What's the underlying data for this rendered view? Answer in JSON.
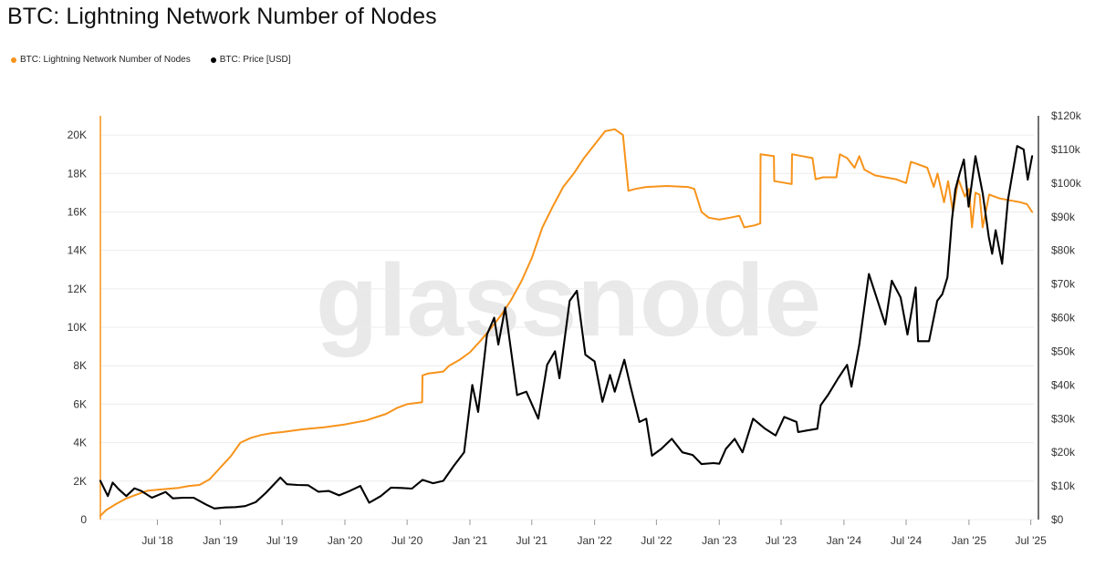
{
  "title": "BTC: Lightning Network Number of Nodes",
  "watermark": "glassnode",
  "legend": [
    {
      "label": "BTC: Lightning Network Number of Nodes",
      "color": "#F7931A"
    },
    {
      "label": "BTC: Price [USD]",
      "color": "#000000"
    }
  ],
  "chart_data": {
    "type": "line",
    "title": "BTC: Lightning Network Number of Nodes",
    "x_ticks": [
      "Jul '18",
      "Jan '19",
      "Jul '19",
      "Jan '20",
      "Jul '20",
      "Jan '21",
      "Jul '21",
      "Jan '22",
      "Jul '22",
      "Jan '23",
      "Jul '23",
      "Jan '24",
      "Jul '24",
      "Jan '25",
      "Jul '25"
    ],
    "x_tick_dates": [
      "2018-07-01",
      "2019-01-01",
      "2019-07-01",
      "2020-01-01",
      "2020-07-01",
      "2021-01-01",
      "2021-07-01",
      "2022-01-01",
      "2022-07-01",
      "2023-01-01",
      "2023-07-01",
      "2024-01-01",
      "2024-07-01",
      "2025-01-01",
      "2025-07-01"
    ],
    "xlim": [
      "2018-01-15",
      "2025-07-10"
    ],
    "y_left": {
      "ylim": [
        0,
        21000
      ],
      "ticks": [
        0,
        2000,
        4000,
        6000,
        8000,
        10000,
        12000,
        14000,
        16000,
        18000,
        20000
      ],
      "tick_labels": [
        "0",
        "2K",
        "4K",
        "6K",
        "8K",
        "10K",
        "12K",
        "14K",
        "16K",
        "18K",
        "20K"
      ]
    },
    "y_right": {
      "ylim": [
        0,
        120000
      ],
      "ticks": [
        0,
        10000,
        20000,
        30000,
        40000,
        50000,
        60000,
        70000,
        80000,
        90000,
        100000,
        110000,
        120000
      ],
      "tick_labels": [
        "$0",
        "$10k",
        "$20k",
        "$30k",
        "$40k",
        "$50k",
        "$60k",
        "$70k",
        "$80k",
        "$90k",
        "$100k",
        "$110k",
        "$120k"
      ]
    },
    "grid": true,
    "legend_position": "top-left",
    "series": [
      {
        "name": "BTC: Lightning Network Number of Nodes",
        "axis": "left",
        "color": "#F7931A",
        "points": [
          [
            "2018-01-15",
            200
          ],
          [
            "2018-02-01",
            500
          ],
          [
            "2018-03-01",
            800
          ],
          [
            "2018-04-01",
            1100
          ],
          [
            "2018-05-01",
            1300
          ],
          [
            "2018-06-01",
            1500
          ],
          [
            "2018-07-01",
            1550
          ],
          [
            "2018-08-01",
            1600
          ],
          [
            "2018-09-01",
            1650
          ],
          [
            "2018-10-01",
            1750
          ],
          [
            "2018-11-01",
            1800
          ],
          [
            "2018-12-01",
            2100
          ],
          [
            "2019-01-01",
            2700
          ],
          [
            "2019-02-01",
            3300
          ],
          [
            "2019-03-01",
            4000
          ],
          [
            "2019-04-01",
            4250
          ],
          [
            "2019-05-01",
            4400
          ],
          [
            "2019-06-01",
            4500
          ],
          [
            "2019-07-01",
            4550
          ],
          [
            "2019-09-01",
            4700
          ],
          [
            "2019-11-01",
            4800
          ],
          [
            "2020-01-01",
            4950
          ],
          [
            "2020-03-01",
            5150
          ],
          [
            "2020-05-01",
            5500
          ],
          [
            "2020-06-01",
            5800
          ],
          [
            "2020-07-01",
            6000
          ],
          [
            "2020-08-14",
            6100
          ],
          [
            "2020-08-15",
            7500
          ],
          [
            "2020-09-01",
            7600
          ],
          [
            "2020-10-15",
            7700
          ],
          [
            "2020-11-01",
            8000
          ],
          [
            "2020-12-01",
            8300
          ],
          [
            "2021-01-01",
            8700
          ],
          [
            "2021-02-01",
            9300
          ],
          [
            "2021-03-01",
            9900
          ],
          [
            "2021-04-01",
            10600
          ],
          [
            "2021-05-01",
            11400
          ],
          [
            "2021-06-01",
            12400
          ],
          [
            "2021-07-01",
            13600
          ],
          [
            "2021-08-01",
            15200
          ],
          [
            "2021-09-01",
            16300
          ],
          [
            "2021-10-01",
            17300
          ],
          [
            "2021-11-01",
            18000
          ],
          [
            "2021-12-01",
            18800
          ],
          [
            "2022-01-01",
            19500
          ],
          [
            "2022-02-01",
            20200
          ],
          [
            "2022-03-01",
            20300
          ],
          [
            "2022-03-25",
            20000
          ],
          [
            "2022-04-10",
            17100
          ],
          [
            "2022-05-01",
            17200
          ],
          [
            "2022-06-01",
            17300
          ],
          [
            "2022-08-01",
            17350
          ],
          [
            "2022-10-01",
            17300
          ],
          [
            "2022-10-20",
            17200
          ],
          [
            "2022-11-10",
            16000
          ],
          [
            "2022-12-01",
            15700
          ],
          [
            "2023-01-01",
            15600
          ],
          [
            "2023-02-01",
            15700
          ],
          [
            "2023-03-01",
            15800
          ],
          [
            "2023-03-15",
            15200
          ],
          [
            "2023-04-15",
            15300
          ],
          [
            "2023-05-01",
            15400
          ],
          [
            "2023-05-02",
            19000
          ],
          [
            "2023-06-10",
            18900
          ],
          [
            "2023-06-11",
            17600
          ],
          [
            "2023-07-15",
            17500
          ],
          [
            "2023-08-01",
            17450
          ],
          [
            "2023-08-02",
            19000
          ],
          [
            "2023-09-01",
            18900
          ],
          [
            "2023-10-01",
            18800
          ],
          [
            "2023-10-10",
            17700
          ],
          [
            "2023-11-01",
            17800
          ],
          [
            "2023-12-10",
            17800
          ],
          [
            "2023-12-20",
            19000
          ],
          [
            "2024-01-10",
            18800
          ],
          [
            "2024-02-01",
            18300
          ],
          [
            "2024-02-15",
            18900
          ],
          [
            "2024-03-01",
            18200
          ],
          [
            "2024-04-01",
            17900
          ],
          [
            "2024-05-01",
            17800
          ],
          [
            "2024-06-01",
            17700
          ],
          [
            "2024-07-01",
            17500
          ],
          [
            "2024-07-15",
            18600
          ],
          [
            "2024-08-01",
            18500
          ],
          [
            "2024-09-01",
            18300
          ],
          [
            "2024-09-20",
            17300
          ],
          [
            "2024-10-01",
            18000
          ],
          [
            "2024-10-20",
            16500
          ],
          [
            "2024-11-01",
            17600
          ],
          [
            "2024-11-15",
            16000
          ],
          [
            "2024-12-01",
            17700
          ],
          [
            "2024-12-20",
            16800
          ],
          [
            "2025-01-01",
            17200
          ],
          [
            "2025-01-10",
            15200
          ],
          [
            "2025-01-20",
            17000
          ],
          [
            "2025-02-01",
            16900
          ],
          [
            "2025-02-10",
            15200
          ],
          [
            "2025-03-01",
            16900
          ],
          [
            "2025-04-01",
            16700
          ],
          [
            "2025-05-01",
            16600
          ],
          [
            "2025-06-01",
            16500
          ],
          [
            "2025-06-20",
            16400
          ],
          [
            "2025-07-05",
            16000
          ]
        ]
      },
      {
        "name": "BTC: Price [USD]",
        "axis": "right",
        "color": "#000000",
        "points": [
          [
            "2018-01-15",
            11500
          ],
          [
            "2018-02-06",
            7000
          ],
          [
            "2018-02-20",
            11000
          ],
          [
            "2018-03-10",
            9000
          ],
          [
            "2018-04-01",
            7000
          ],
          [
            "2018-04-25",
            9300
          ],
          [
            "2018-05-15",
            8500
          ],
          [
            "2018-06-15",
            6500
          ],
          [
            "2018-07-25",
            8200
          ],
          [
            "2018-08-15",
            6300
          ],
          [
            "2018-09-15",
            6500
          ],
          [
            "2018-10-15",
            6500
          ],
          [
            "2018-11-20",
            4500
          ],
          [
            "2018-12-15",
            3300
          ],
          [
            "2019-01-15",
            3600
          ],
          [
            "2019-02-15",
            3700
          ],
          [
            "2019-03-15",
            4000
          ],
          [
            "2019-04-15",
            5200
          ],
          [
            "2019-05-15",
            8000
          ],
          [
            "2019-06-26",
            12500
          ],
          [
            "2019-07-15",
            10500
          ],
          [
            "2019-08-15",
            10300
          ],
          [
            "2019-09-15",
            10200
          ],
          [
            "2019-10-15",
            8300
          ],
          [
            "2019-11-15",
            8500
          ],
          [
            "2019-12-15",
            7200
          ],
          [
            "2020-01-15",
            8500
          ],
          [
            "2020-02-15",
            10000
          ],
          [
            "2020-03-12",
            5000
          ],
          [
            "2020-04-15",
            7000
          ],
          [
            "2020-05-15",
            9500
          ],
          [
            "2020-06-15",
            9400
          ],
          [
            "2020-07-15",
            9200
          ],
          [
            "2020-08-15",
            11800
          ],
          [
            "2020-09-15",
            10800
          ],
          [
            "2020-10-15",
            11500
          ],
          [
            "2020-11-15",
            16000
          ],
          [
            "2020-12-15",
            20000
          ],
          [
            "2021-01-08",
            40000
          ],
          [
            "2021-01-25",
            32000
          ],
          [
            "2021-02-20",
            55000
          ],
          [
            "2021-03-13",
            60000
          ],
          [
            "2021-03-25",
            52000
          ],
          [
            "2021-04-14",
            63000
          ],
          [
            "2021-05-19",
            37000
          ],
          [
            "2021-06-15",
            38000
          ],
          [
            "2021-07-20",
            30000
          ],
          [
            "2021-08-15",
            46000
          ],
          [
            "2021-09-07",
            50000
          ],
          [
            "2021-09-20",
            42000
          ],
          [
            "2021-10-20",
            65000
          ],
          [
            "2021-11-10",
            68000
          ],
          [
            "2021-12-05",
            49000
          ],
          [
            "2022-01-01",
            47000
          ],
          [
            "2022-01-24",
            35000
          ],
          [
            "2022-02-15",
            43000
          ],
          [
            "2022-03-01",
            38000
          ],
          [
            "2022-03-29",
            47500
          ],
          [
            "2022-04-15",
            40000
          ],
          [
            "2022-05-12",
            29000
          ],
          [
            "2022-06-01",
            30000
          ],
          [
            "2022-06-18",
            19000
          ],
          [
            "2022-07-15",
            21000
          ],
          [
            "2022-08-15",
            24000
          ],
          [
            "2022-09-15",
            20000
          ],
          [
            "2022-10-15",
            19200
          ],
          [
            "2022-11-10",
            16500
          ],
          [
            "2022-12-15",
            16800
          ],
          [
            "2023-01-01",
            16600
          ],
          [
            "2023-01-20",
            21000
          ],
          [
            "2023-02-15",
            24000
          ],
          [
            "2023-03-10",
            20000
          ],
          [
            "2023-04-10",
            30000
          ],
          [
            "2023-05-15",
            27000
          ],
          [
            "2023-06-15",
            25000
          ],
          [
            "2023-07-10",
            30500
          ],
          [
            "2023-08-15",
            29000
          ],
          [
            "2023-08-20",
            26000
          ],
          [
            "2023-09-15",
            26500
          ],
          [
            "2023-10-15",
            27000
          ],
          [
            "2023-10-25",
            34000
          ],
          [
            "2023-11-15",
            37000
          ],
          [
            "2023-12-15",
            42000
          ],
          [
            "2024-01-10",
            46000
          ],
          [
            "2024-01-23",
            39500
          ],
          [
            "2024-02-15",
            52000
          ],
          [
            "2024-03-14",
            73000
          ],
          [
            "2024-04-15",
            63000
          ],
          [
            "2024-05-01",
            58000
          ],
          [
            "2024-05-20",
            71000
          ],
          [
            "2024-06-15",
            66000
          ],
          [
            "2024-07-05",
            55000
          ],
          [
            "2024-07-29",
            69000
          ],
          [
            "2024-08-05",
            53000
          ],
          [
            "2024-09-06",
            53000
          ],
          [
            "2024-09-30",
            65000
          ],
          [
            "2024-10-15",
            67000
          ],
          [
            "2024-10-30",
            72000
          ],
          [
            "2024-11-12",
            89000
          ],
          [
            "2024-11-22",
            98000
          ],
          [
            "2024-12-05",
            103000
          ],
          [
            "2024-12-17",
            107000
          ],
          [
            "2024-12-31",
            93000
          ],
          [
            "2025-01-20",
            108000
          ],
          [
            "2025-02-10",
            97000
          ],
          [
            "2025-02-28",
            84000
          ],
          [
            "2025-03-10",
            79000
          ],
          [
            "2025-03-20",
            86000
          ],
          [
            "2025-04-08",
            76000
          ],
          [
            "2025-04-25",
            95000
          ],
          [
            "2025-05-22",
            111000
          ],
          [
            "2025-06-10",
            110000
          ],
          [
            "2025-06-22",
            101000
          ],
          [
            "2025-07-05",
            108000
          ]
        ]
      }
    ]
  }
}
